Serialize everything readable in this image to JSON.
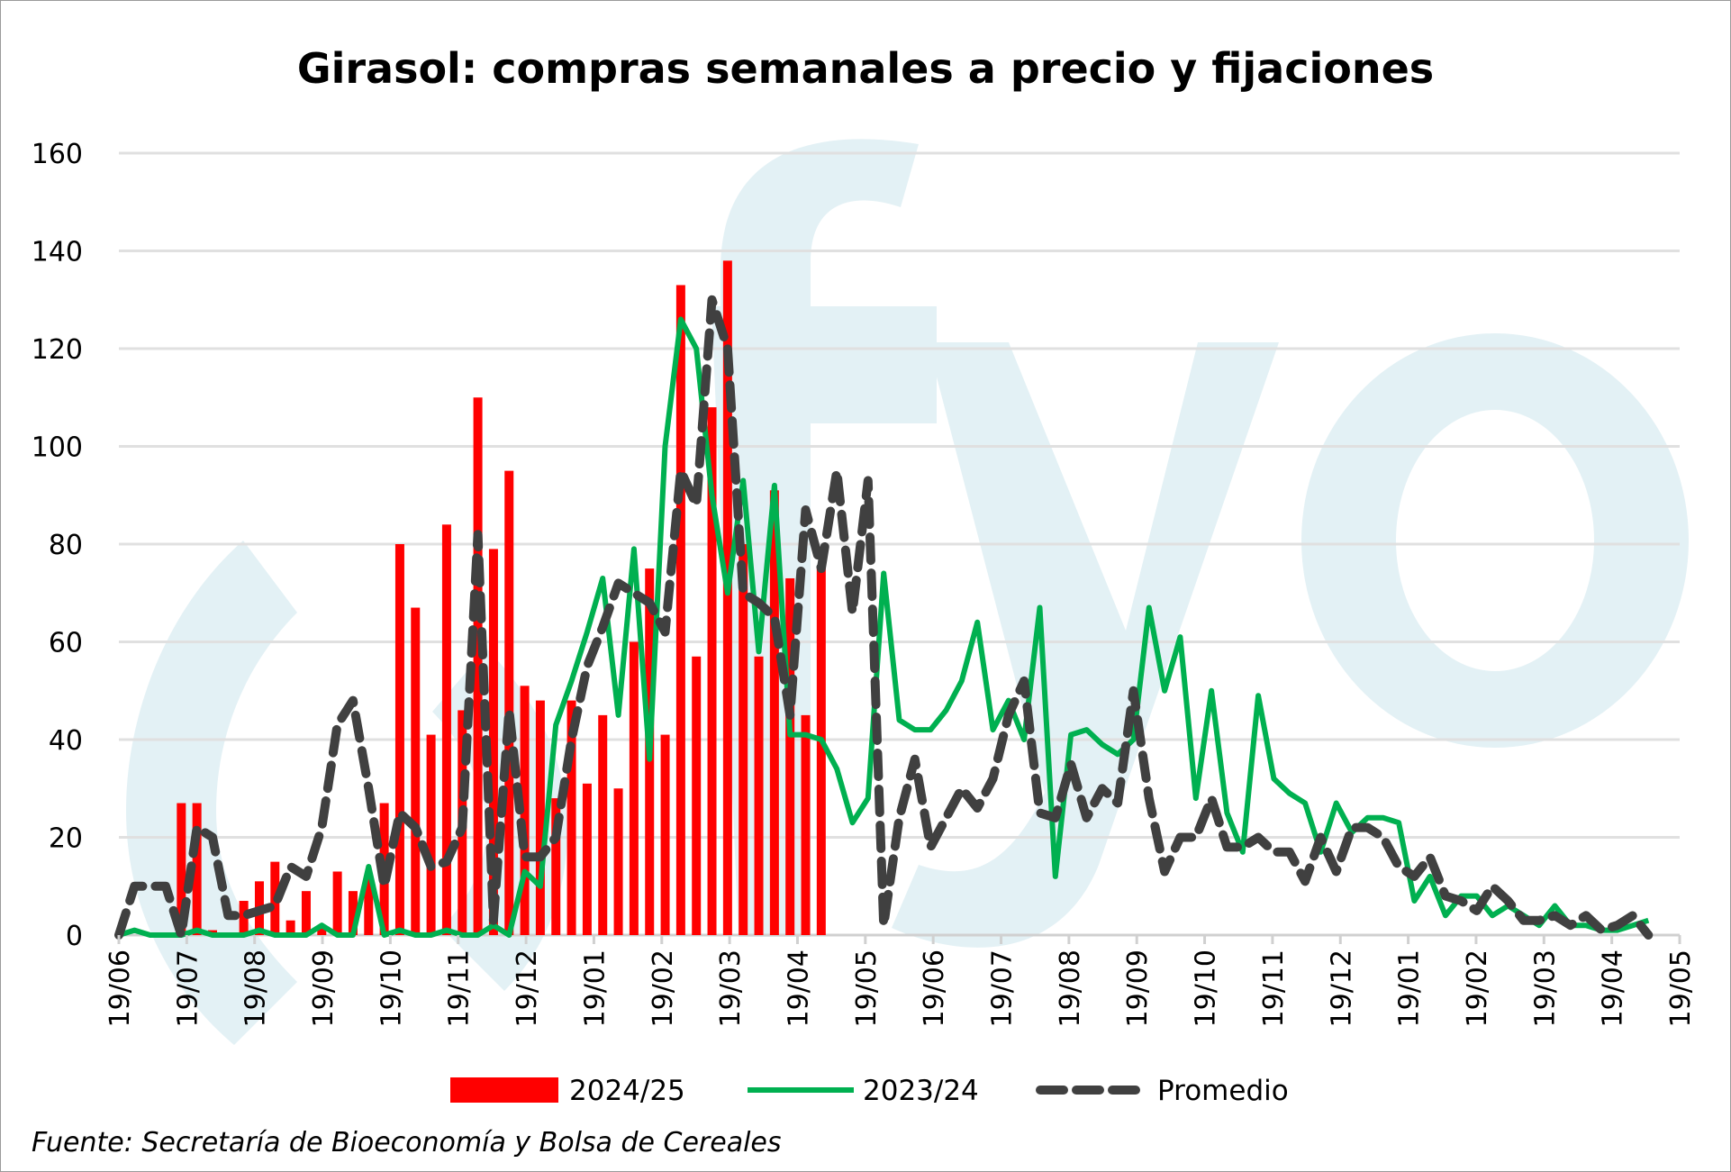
{
  "chart_data": {
    "type": "bar+line",
    "title": "Girasol: compras semanales a precio y fijaciones",
    "xlabel": "",
    "ylabel": "",
    "ylim": [
      0,
      160
    ],
    "yticks": [
      0,
      20,
      40,
      60,
      80,
      100,
      120,
      140,
      160
    ],
    "xtick_labels": [
      "19/06",
      "19/07",
      "19/08",
      "19/09",
      "19/10",
      "19/11",
      "19/12",
      "19/01",
      "19/02",
      "19/03",
      "19/04",
      "19/05",
      "19/06",
      "19/07",
      "19/08",
      "19/09",
      "19/10",
      "19/11",
      "19/12",
      "19/01",
      "19/02",
      "19/03",
      "19/04",
      "19/05"
    ],
    "x_unit": "week index from first 19/06",
    "x_range_weeks": [
      0,
      100
    ],
    "grid": "horizontal",
    "legend_position": "bottom",
    "series": [
      {
        "name": "2024/25",
        "type": "bar",
        "color": "#ff0000",
        "start_week": 4,
        "values": [
          27,
          27,
          1,
          0,
          7,
          11,
          15,
          3,
          9,
          2,
          13,
          9,
          12,
          27,
          80,
          67,
          41,
          84,
          46,
          110,
          79,
          95,
          51,
          48,
          28,
          48,
          31,
          45,
          30,
          60,
          75,
          41,
          133,
          57,
          108,
          138,
          80,
          57,
          91,
          73,
          45,
          75
        ]
      },
      {
        "name": "2023/24",
        "type": "line",
        "color": "#00b050",
        "start_week": 0,
        "values": [
          0,
          1,
          0,
          0,
          0,
          1,
          0,
          0,
          0,
          1,
          0,
          0,
          0,
          2,
          0,
          0,
          14,
          0,
          1,
          0,
          0,
          1,
          0,
          0,
          2,
          0,
          13,
          10,
          43,
          52,
          62,
          73,
          45,
          79,
          36,
          100,
          126,
          120,
          90,
          70,
          93,
          58,
          92,
          41,
          41,
          40,
          34,
          23,
          28,
          74,
          44,
          42,
          42,
          46,
          52,
          64,
          42,
          48,
          40,
          67,
          12,
          41,
          42,
          39,
          37,
          40,
          67,
          50,
          61,
          28,
          50,
          25,
          17,
          49,
          32,
          29,
          27,
          17,
          27,
          21,
          24,
          24,
          23,
          7,
          12,
          4,
          8,
          8,
          4,
          6,
          4,
          2,
          6,
          2,
          2,
          1,
          1,
          2,
          3
        ]
      },
      {
        "name": "Promedio",
        "type": "line-dashed",
        "color": "#404040",
        "start_week": 0,
        "values": [
          0,
          10,
          10,
          10,
          0,
          22,
          20,
          4,
          4,
          5,
          6,
          14,
          12,
          22,
          43,
          48,
          30,
          10,
          25,
          22,
          14,
          15,
          22,
          82,
          3,
          46,
          16,
          16,
          20,
          40,
          55,
          63,
          72,
          70,
          68,
          62,
          95,
          88,
          130,
          120,
          70,
          68,
          65,
          45,
          87,
          75,
          95,
          66,
          93,
          2,
          24,
          36,
          18,
          24,
          30,
          26,
          32,
          45,
          52,
          25,
          24,
          35,
          24,
          30,
          27,
          50,
          28,
          13,
          20,
          20,
          28,
          18,
          18,
          20,
          17,
          17,
          11,
          20,
          13,
          22,
          22,
          20,
          14,
          12,
          16,
          8,
          7,
          5,
          10,
          7,
          3,
          3,
          4,
          2,
          4,
          1,
          2,
          4,
          0
        ]
      }
    ],
    "source": "Fuente: Secretaría de Bioeconomía y Bolsa de Cereales",
    "watermark": "fyo"
  }
}
